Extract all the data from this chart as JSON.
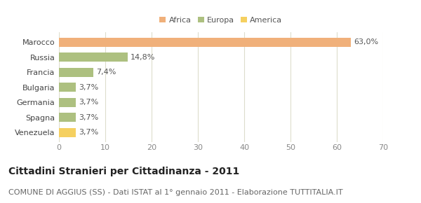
{
  "categories": [
    "Venezuela",
    "Spagna",
    "Germania",
    "Bulgaria",
    "Francia",
    "Russia",
    "Marocco"
  ],
  "values": [
    3.7,
    3.7,
    3.7,
    3.7,
    7.4,
    14.8,
    63.0
  ],
  "colors": [
    "#f5d060",
    "#adc080",
    "#adc080",
    "#adc080",
    "#adc080",
    "#adc080",
    "#f0b07a"
  ],
  "labels": [
    "3,7%",
    "3,7%",
    "3,7%",
    "3,7%",
    "7,4%",
    "14,8%",
    "63,0%"
  ],
  "legend_entries": [
    {
      "label": "Africa",
      "color": "#f0b07a"
    },
    {
      "label": "Europa",
      "color": "#adc080"
    },
    {
      "label": "America",
      "color": "#f5d060"
    }
  ],
  "xlim": [
    0,
    70
  ],
  "xticks": [
    0,
    10,
    20,
    30,
    40,
    50,
    60,
    70
  ],
  "title": "Cittadini Stranieri per Cittadinanza - 2011",
  "subtitle": "COMUNE DI AGGIUS (SS) - Dati ISTAT al 1° gennaio 2011 - Elaborazione TUTTITALIA.IT",
  "fig_bg_color": "#ffffff",
  "plot_bg_color": "#ffffff",
  "grid_color": "#ddddcc",
  "title_fontsize": 10,
  "subtitle_fontsize": 8,
  "label_fontsize": 8,
  "tick_fontsize": 8,
  "bar_height": 0.62
}
